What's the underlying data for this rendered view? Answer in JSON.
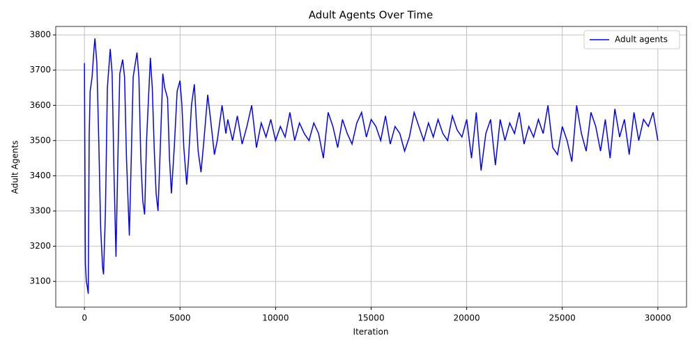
{
  "chart_data": {
    "type": "line",
    "title": "Adult Agents Over Time",
    "xlabel": "Iteration",
    "ylabel": "Adult Agents",
    "x": [
      0,
      50,
      100,
      150,
      200,
      250,
      300,
      400,
      500,
      550,
      650,
      750,
      850,
      950,
      1000,
      1100,
      1200,
      1350,
      1450,
      1550,
      1650,
      1750,
      1850,
      2000,
      2100,
      2200,
      2350,
      2450,
      2550,
      2750,
      2850,
      2950,
      3050,
      3150,
      3250,
      3450,
      3550,
      3650,
      3750,
      3850,
      3950,
      4100,
      4200,
      4350,
      4450,
      4550,
      4700,
      4850,
      5000,
      5100,
      5200,
      5350,
      5450,
      5600,
      5750,
      5850,
      5950,
      6100,
      6250,
      6450,
      6600,
      6800,
      6950,
      7200,
      7400,
      7500,
      7750,
      8000,
      8250,
      8500,
      8750,
      9000,
      9250,
      9500,
      9750,
      10000,
      10250,
      10500,
      10750,
      11000,
      11250,
      11500,
      11750,
      12000,
      12250,
      12500,
      12750,
      13000,
      13250,
      13500,
      13750,
      14000,
      14250,
      14500,
      14750,
      15000,
      15250,
      15500,
      15750,
      16000,
      16250,
      16500,
      16750,
      17000,
      17250,
      17500,
      17750,
      18000,
      18250,
      18500,
      18750,
      19000,
      19250,
      19500,
      19750,
      20000,
      20250,
      20500,
      20750,
      21000,
      21250,
      21500,
      21750,
      22000,
      22250,
      22500,
      22750,
      23000,
      23250,
      23500,
      23750,
      24000,
      24250,
      24500,
      24750,
      25000,
      25250,
      25500,
      25750,
      26000,
      26250,
      26500,
      26750,
      27000,
      27250,
      27500,
      27750,
      28000,
      28250,
      28500,
      28750,
      29000,
      29250,
      29500,
      29750,
      30000
    ],
    "series": [
      {
        "name": "Adult agents",
        "color": "#0000ff",
        "values": [
          3720,
          3150,
          3100,
          3085,
          3065,
          3520,
          3640,
          3680,
          3760,
          3790,
          3720,
          3500,
          3250,
          3140,
          3120,
          3300,
          3650,
          3760,
          3690,
          3400,
          3170,
          3450,
          3690,
          3730,
          3680,
          3450,
          3230,
          3450,
          3680,
          3750,
          3680,
          3450,
          3330,
          3290,
          3500,
          3735,
          3650,
          3480,
          3350,
          3300,
          3450,
          3690,
          3650,
          3620,
          3450,
          3350,
          3480,
          3640,
          3670,
          3600,
          3480,
          3375,
          3450,
          3600,
          3660,
          3560,
          3470,
          3410,
          3500,
          3630,
          3560,
          3460,
          3500,
          3600,
          3520,
          3560,
          3500,
          3570,
          3490,
          3540,
          3600,
          3480,
          3550,
          3510,
          3560,
          3500,
          3540,
          3510,
          3580,
          3500,
          3550,
          3520,
          3500,
          3550,
          3520,
          3450,
          3580,
          3540,
          3480,
          3560,
          3520,
          3490,
          3550,
          3580,
          3510,
          3560,
          3540,
          3500,
          3570,
          3490,
          3540,
          3520,
          3470,
          3510,
          3580,
          3540,
          3500,
          3550,
          3510,
          3560,
          3520,
          3500,
          3570,
          3530,
          3510,
          3560,
          3450,
          3580,
          3415,
          3520,
          3560,
          3430,
          3560,
          3500,
          3550,
          3520,
          3580,
          3490,
          3540,
          3510,
          3560,
          3520,
          3600,
          3480,
          3460,
          3540,
          3500,
          3440,
          3600,
          3520,
          3470,
          3580,
          3540,
          3470,
          3560,
          3450,
          3590,
          3510,
          3560,
          3460,
          3580,
          3500,
          3560,
          3540,
          3580,
          3500
        ]
      }
    ],
    "xlim": [
      -1500,
      31500
    ],
    "ylim": [
      3027,
      3824
    ],
    "xticks": [
      0,
      5000,
      10000,
      15000,
      20000,
      25000,
      30000
    ],
    "yticks": [
      3100,
      3200,
      3300,
      3400,
      3500,
      3600,
      3700,
      3800
    ],
    "grid": true,
    "legend": "upper right"
  }
}
